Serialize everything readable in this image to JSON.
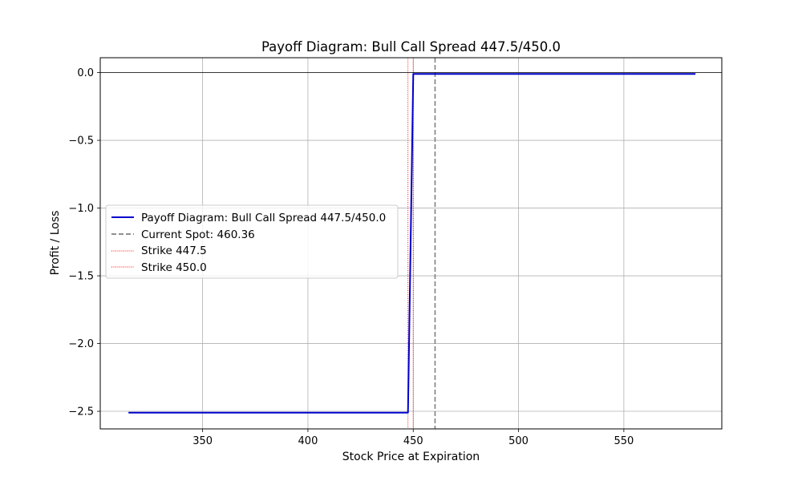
{
  "chart_data": {
    "type": "line",
    "title": "Payoff Diagram: Bull Call Spread 447.5/450.0",
    "xlabel": "Stock Price at Expiration",
    "ylabel": "Profit / Loss",
    "xlim": [
      301.4,
      596.5
    ],
    "ylim": [
      -2.63,
      0.11
    ],
    "xticks": [
      350,
      400,
      450,
      500,
      550
    ],
    "yticks": [
      0.0,
      -0.5,
      -1.0,
      -1.5,
      -2.0,
      -2.5
    ],
    "xtick_labels": [
      "350",
      "400",
      "450",
      "500",
      "550"
    ],
    "ytick_labels": [
      "0.0",
      "−0.5",
      "−1.0",
      "−1.5",
      "−2.0",
      "−2.5"
    ],
    "grid": true,
    "legend_position": "center-left",
    "series": [
      {
        "name": "Payoff Diagram: Bull Call Spread 447.5/450.0",
        "color": "#0000cc",
        "style": "solid",
        "x": [
          314.8,
          447.5,
          450.0,
          584.0
        ],
        "y": [
          -2.51,
          -2.51,
          -0.01,
          -0.01
        ]
      }
    ],
    "reference_lines": [
      {
        "name": "Current Spot: 460.36",
        "orientation": "vertical",
        "value": 460.36,
        "color": "#808080",
        "style": "dashed"
      },
      {
        "name": "Strike 447.5",
        "orientation": "vertical",
        "value": 447.5,
        "color": "#ff0000",
        "style": "dotted"
      },
      {
        "name": "Strike 450.0",
        "orientation": "vertical",
        "value": 450.0,
        "color": "#ff0000",
        "style": "dotted"
      },
      {
        "orientation": "horizontal",
        "value": 0.0,
        "color": "#000000",
        "style": "solid"
      }
    ]
  }
}
